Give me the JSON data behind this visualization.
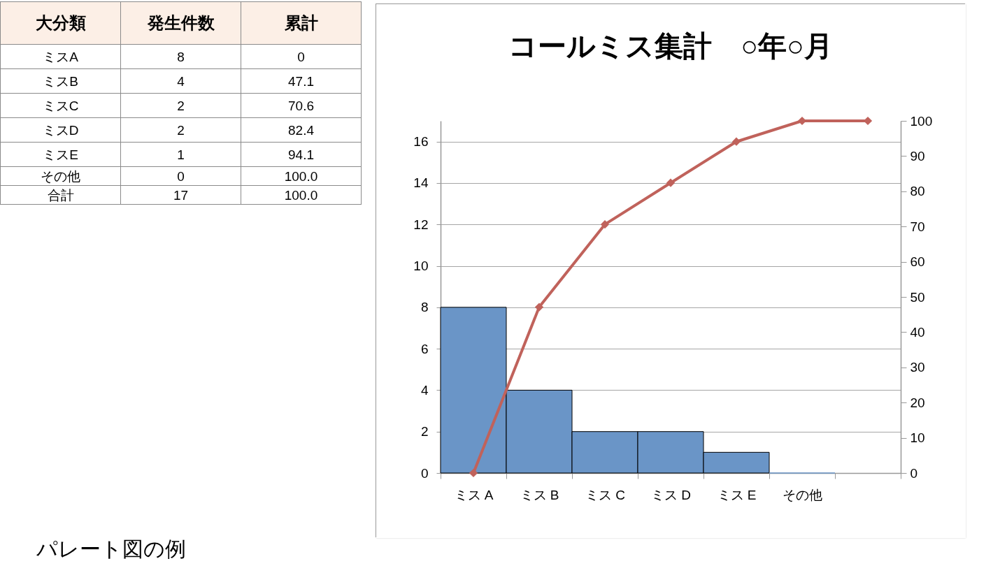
{
  "chart_data": [
    {
      "type": "other",
      "xlabel": "大分類",
      "categories": [
        "ミスA",
        "ミスB",
        "ミスC",
        "ミスD",
        "ミスE",
        "その他",
        "合計"
      ],
      "series": [
        {
          "name": "発生件数",
          "values": [
            8,
            4,
            2,
            2,
            1,
            0,
            17
          ],
          "value_labels": [
            "8",
            "4",
            "2",
            "2",
            "1",
            "0",
            "17"
          ]
        },
        {
          "name": "累計",
          "values": [
            0,
            47.1,
            70.6,
            82.4,
            94.1,
            100,
            100
          ],
          "value_labels": [
            "0",
            "47.1",
            "70.6",
            "82.4",
            "94.1",
            "100.0",
            "100.0"
          ]
        }
      ],
      "annotations": [
        "パレート図の例"
      ]
    },
    {
      "type": "bar",
      "title": "コールミス集計　○年○月",
      "categories": [
        "ミス A",
        "ミス B",
        "ミス C",
        "ミス D",
        "ミス E",
        "その他",
        null
      ],
      "series": [
        {
          "type": "bar",
          "color": "#6a95c7",
          "values": [
            8,
            4,
            2,
            2,
            1,
            0,
            null
          ]
        },
        {
          "type": "line",
          "axis": "y2",
          "color": "#c0625b",
          "values": [
            0,
            47.1,
            70.6,
            82.4,
            94.1,
            100,
            100
          ]
        }
      ],
      "ylim": [
        0,
        17
      ],
      "yticks": [
        0,
        2,
        4,
        6,
        8,
        10,
        12,
        14,
        16
      ],
      "y2lim": [
        0,
        100
      ],
      "y2ticks": [
        0,
        10,
        20,
        30,
        40,
        50,
        60,
        70,
        80,
        90,
        100
      ],
      "grid": "y",
      "marker": "diamond",
      "line_style": "solid"
    }
  ]
}
